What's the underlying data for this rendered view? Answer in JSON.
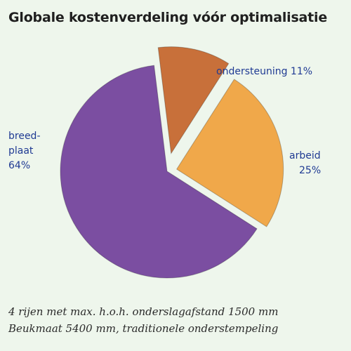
{
  "title": "Globale kostenverdeling vóór optimalisatie",
  "caption": {
    "line1": "4 rijen met max. h.o.h. onderslagafstand 1500 mm",
    "line2": "Beukmaat 5400 mm, traditionele onderstempeling"
  },
  "labels": {
    "breedplaat": {
      "line1": "breed-",
      "line2": "plaat",
      "line3": "64%"
    },
    "arbeid": {
      "line1": "arbeid",
      "line2": "25%"
    },
    "ondersteuning": {
      "line1": "ondersteuning 11%"
    }
  },
  "chart_data": {
    "type": "pie",
    "title": "Globale kostenverdeling vóór optimalisatie",
    "exploded": true,
    "slices": [
      {
        "name": "ondersteuning",
        "value": 11,
        "color": "#c8703a"
      },
      {
        "name": "arbeid",
        "value": 25,
        "color": "#f0a84a"
      },
      {
        "name": "breedplaat",
        "value": 64,
        "color": "#7b4ea1"
      }
    ]
  }
}
